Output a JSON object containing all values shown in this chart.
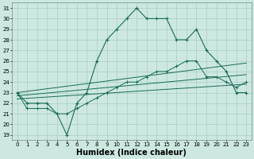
{
  "xlabel": "Humidex (Indice chaleur)",
  "bg_color": "#cce8e0",
  "line_color": "#1a6b5a",
  "grid_color": "#aaccc4",
  "xlim": [
    -0.5,
    23.5
  ],
  "ylim": [
    18.5,
    31.5
  ],
  "yticks": [
    19,
    20,
    21,
    22,
    23,
    24,
    25,
    26,
    27,
    28,
    29,
    30,
    31
  ],
  "xticks": [
    0,
    1,
    2,
    3,
    4,
    5,
    6,
    7,
    8,
    9,
    10,
    11,
    12,
    13,
    14,
    15,
    16,
    17,
    18,
    19,
    20,
    21,
    22,
    23
  ],
  "main_y": [
    23,
    22,
    22,
    22,
    21,
    19,
    22,
    23,
    26,
    28,
    29,
    30,
    31,
    30,
    30,
    30,
    28,
    28,
    29,
    27,
    26,
    25,
    23,
    23
  ],
  "line2_y": [
    23,
    21.5,
    21.5,
    21.5,
    21,
    21,
    21.5,
    22,
    22.5,
    23,
    23.5,
    24,
    24,
    24.5,
    25,
    25,
    25.5,
    26,
    26,
    24.5,
    24.5,
    24,
    23.5,
    24
  ],
  "reg_lines": [
    [
      0,
      23,
      23,
      25.8
    ],
    [
      0,
      22.7,
      23,
      24.7
    ],
    [
      0,
      22.4,
      23,
      23.8
    ]
  ],
  "xlabel_fontsize": 7,
  "tick_fontsize": 5
}
